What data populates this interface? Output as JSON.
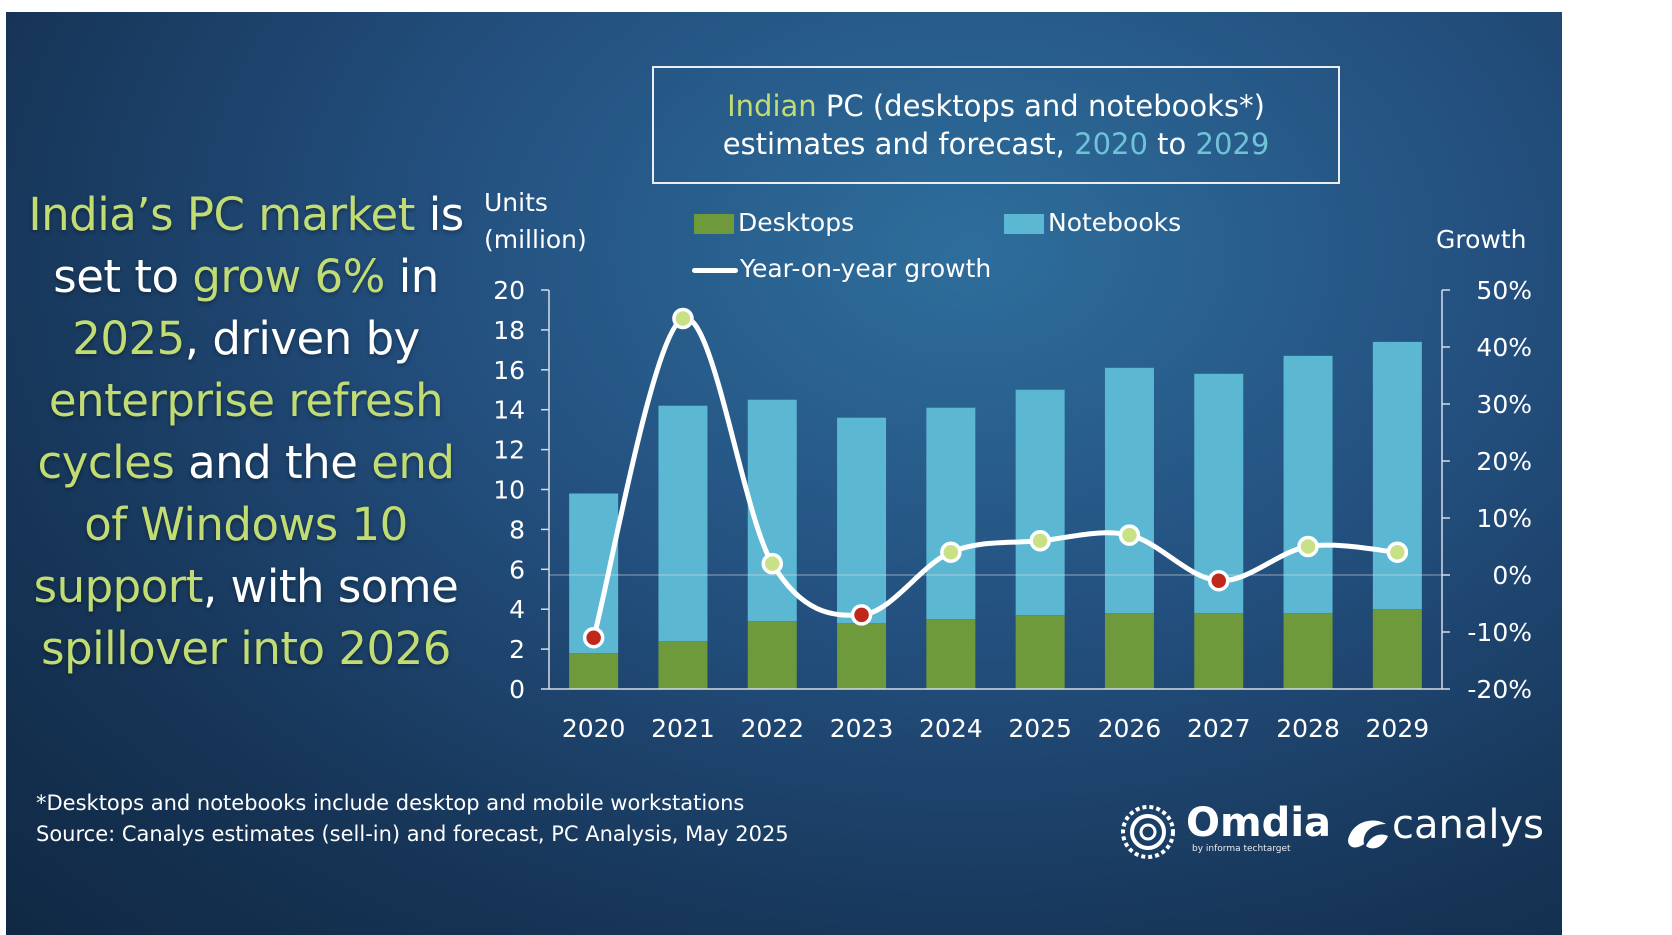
{
  "headline": {
    "parts": [
      {
        "text": "India’s PC market",
        "highlight": true
      },
      {
        "text": " is set to ",
        "highlight": false
      },
      {
        "text": "grow 6%",
        "highlight": true
      },
      {
        "text": " in ",
        "highlight": false
      },
      {
        "text": "2025",
        "highlight": true
      },
      {
        "text": ", driven by ",
        "highlight": false
      },
      {
        "text": "enterprise refresh cycles",
        "highlight": true
      },
      {
        "text": " and the ",
        "highlight": false
      },
      {
        "text": "end of Windows 10 support",
        "highlight": true
      },
      {
        "text": ", with some ",
        "highlight": false
      },
      {
        "text": "spillover into 2026",
        "highlight": true
      }
    ]
  },
  "title": {
    "indian": "Indian",
    "rest1": " PC (desktops and notebooks*)",
    "line2a": "estimates and forecast, ",
    "from": "2020",
    "to": " to ",
    "until": "2029"
  },
  "axis_titles": {
    "left_line1": "Units",
    "left_line2": "(million)",
    "right": "Growth"
  },
  "legend": {
    "desktops": "Desktops",
    "notebooks": "Notebooks",
    "growth": "Year-on-year growth"
  },
  "colors": {
    "desktops": "#6f9a3b",
    "notebooks": "#5cb7d3",
    "growth_line": "#ffffff",
    "positive_marker": "#c8e187",
    "negative_marker": "#c0281c",
    "highlight_text": "#c2dc74",
    "year_text": "#6fc2d8"
  },
  "chart_data": {
    "type": "bar",
    "stacked": true,
    "categories": [
      "2020",
      "2021",
      "2022",
      "2023",
      "2024",
      "2025",
      "2026",
      "2027",
      "2028",
      "2029"
    ],
    "series": [
      {
        "name": "Desktops",
        "values": [
          1.8,
          2.4,
          3.4,
          3.3,
          3.5,
          3.7,
          3.8,
          3.8,
          3.8,
          4.0
        ]
      },
      {
        "name": "Notebooks",
        "values": [
          8.0,
          11.8,
          11.1,
          10.3,
          10.6,
          11.3,
          12.3,
          12.0,
          12.9,
          13.4
        ]
      }
    ],
    "line_series": {
      "name": "Year-on-year growth",
      "axis": "right",
      "values": [
        -11,
        45,
        2,
        -7,
        4,
        6,
        7,
        -1,
        5,
        4
      ]
    },
    "ylim": [
      0,
      20
    ],
    "y_ticks": [
      0,
      2,
      4,
      6,
      8,
      10,
      12,
      14,
      16,
      18,
      20
    ],
    "y2lim": [
      -20,
      50
    ],
    "y2_ticks": [
      "-20%",
      "-10%",
      "0%",
      "10%",
      "20%",
      "30%",
      "40%",
      "50%"
    ],
    "ylabel": "Units (million)",
    "y2label": "Growth",
    "grid": false,
    "legend_position": "top"
  },
  "footnote": {
    "line1": "*Desktops and notebooks include desktop and mobile workstations",
    "line2": "Source: Canalys estimates (sell-in) and forecast, PC Analysis, May 2025"
  },
  "logos": {
    "omdia": "Omdia",
    "omdia_sub": "by informa techtarget",
    "canalys": "canalys"
  }
}
